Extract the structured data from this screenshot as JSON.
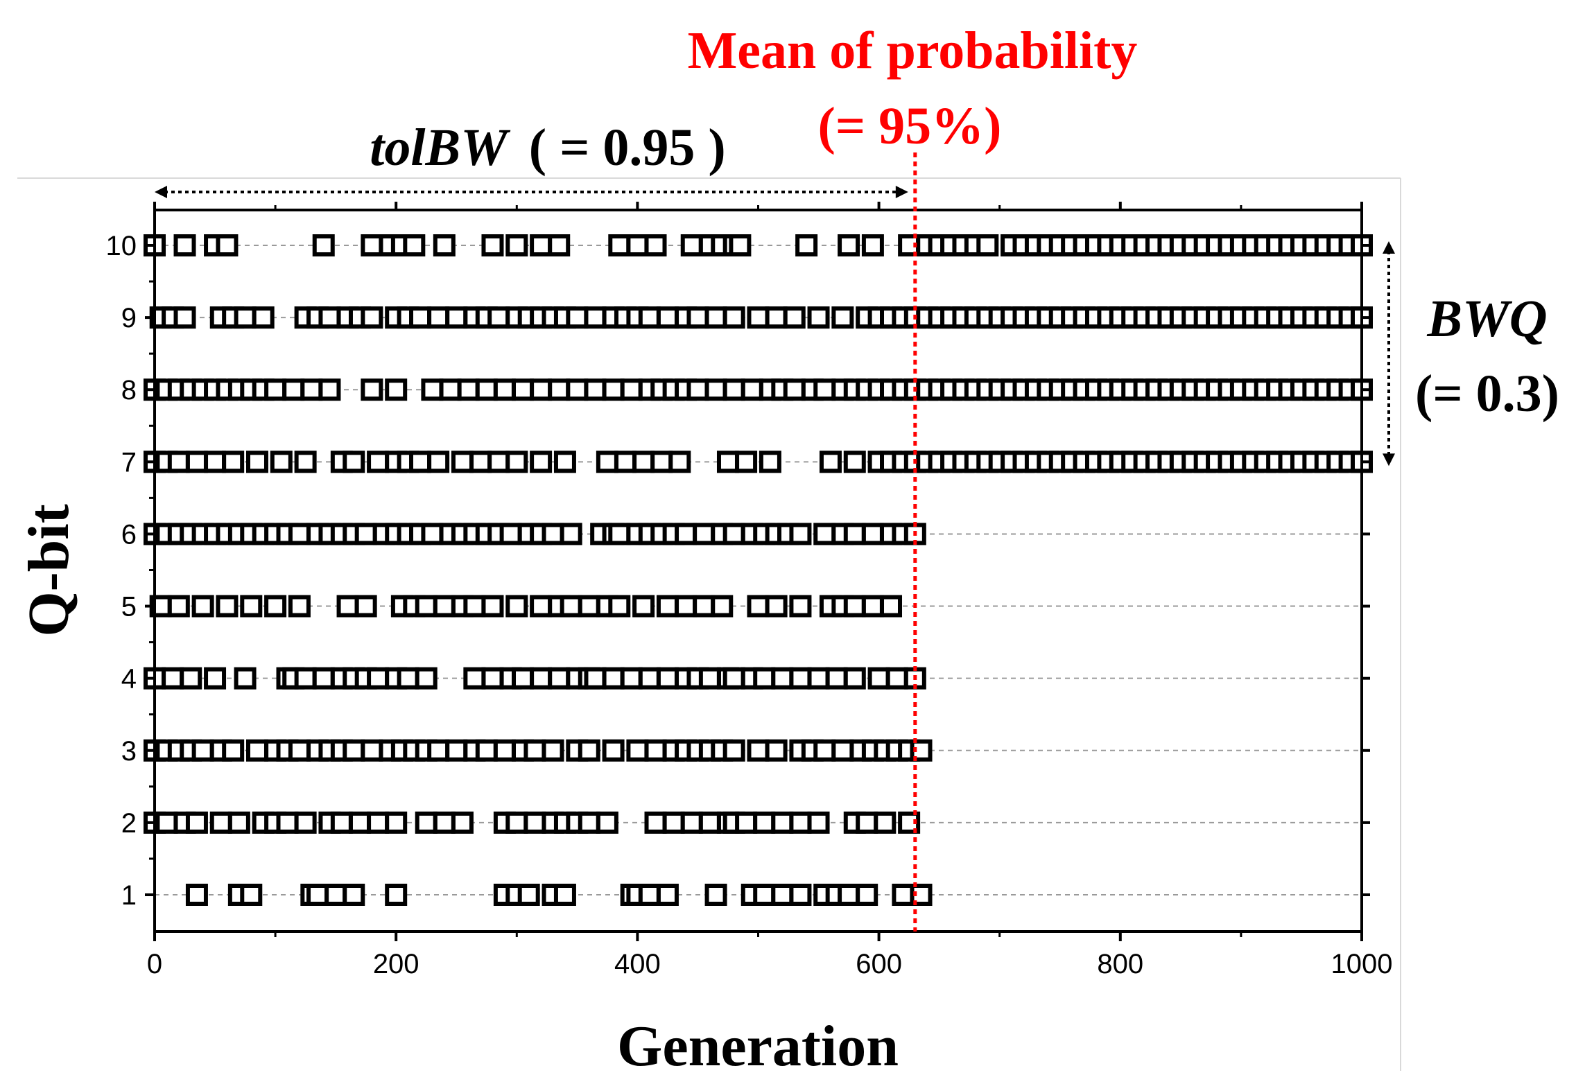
{
  "chart_data": {
    "type": "scatter",
    "xlabel": "Generation",
    "ylabel": "Q-bit",
    "xlim": [
      0,
      1000
    ],
    "ylim": [
      0.5,
      10.5
    ],
    "x_ticks": [
      0,
      200,
      400,
      600,
      800,
      1000
    ],
    "y_ticks": [
      1,
      2,
      3,
      4,
      5,
      6,
      7,
      8,
      9,
      10
    ],
    "grid": "horizontal dashed",
    "marker": "open-square",
    "annotations": {
      "mean_title": "Mean of probability",
      "mean_value": "(= 95%)",
      "mean_generation": 630,
      "tolbw_symbol": "tolBW",
      "tolbw_value": "( = 0.95 )",
      "tolbw_range": [
        0,
        630
      ],
      "bwq_symbol": "BWQ",
      "bwq_value": "(= 0.3)",
      "bwq_range": [
        7,
        10
      ]
    },
    "series": [
      {
        "name": "Q-bit 1",
        "y": 1,
        "x": [
          35,
          70,
          80,
          130,
          135,
          150,
          165,
          200,
          290,
          300,
          310,
          330,
          340,
          395,
          400,
          410,
          425,
          465,
          495,
          505,
          520,
          535,
          555,
          565,
          575,
          590,
          620,
          635
        ]
      },
      {
        "name": "Q-bit 2",
        "y": 2,
        "x": [
          0,
          10,
          25,
          35,
          55,
          70,
          90,
          100,
          110,
          125,
          145,
          155,
          170,
          185,
          200,
          225,
          240,
          255,
          290,
          300,
          315,
          330,
          340,
          350,
          360,
          375,
          415,
          430,
          445,
          460,
          475,
          480,
          490,
          505,
          520,
          535,
          550,
          580,
          590,
          605,
          625
        ]
      },
      {
        "name": "Q-bit 3",
        "y": 3,
        "x": [
          0,
          10,
          20,
          30,
          40,
          55,
          65,
          85,
          100,
          110,
          120,
          135,
          145,
          155,
          165,
          180,
          195,
          205,
          215,
          225,
          235,
          250,
          265,
          275,
          290,
          305,
          315,
          330,
          350,
          360,
          380,
          400,
          415,
          430,
          440,
          450,
          460,
          470,
          480,
          500,
          515,
          535,
          545,
          555,
          570,
          585,
          595,
          605,
          615,
          625,
          635
        ]
      },
      {
        "name": "Q-bit 4",
        "y": 4,
        "x": [
          0,
          15,
          30,
          50,
          75,
          110,
          115,
          125,
          140,
          155,
          165,
          175,
          185,
          200,
          210,
          225,
          265,
          280,
          295,
          305,
          320,
          335,
          350,
          360,
          365,
          380,
          395,
          410,
          425,
          440,
          450,
          460,
          475,
          480,
          495,
          505,
          520,
          535,
          550,
          565,
          580,
          600,
          615,
          630
        ]
      },
      {
        "name": "Q-bit 5",
        "y": 5,
        "x": [
          5,
          20,
          40,
          60,
          80,
          100,
          120,
          160,
          175,
          205,
          215,
          225,
          240,
          255,
          265,
          280,
          300,
          320,
          335,
          345,
          360,
          375,
          385,
          405,
          425,
          440,
          455,
          470,
          500,
          515,
          535,
          560,
          570,
          580,
          595,
          610
        ]
      },
      {
        "name": "Q-bit 6",
        "y": 6,
        "x": [
          0,
          10,
          20,
          30,
          40,
          50,
          60,
          70,
          80,
          90,
          100,
          110,
          120,
          135,
          145,
          155,
          165,
          175,
          190,
          200,
          210,
          220,
          230,
          245,
          255,
          265,
          275,
          285,
          295,
          310,
          320,
          330,
          345,
          370,
          380,
          385,
          400,
          410,
          420,
          430,
          440,
          455,
          470,
          480,
          495,
          505,
          515,
          525,
          535,
          555,
          570,
          580,
          595,
          610,
          620,
          630
        ]
      },
      {
        "name": "Q-bit 7",
        "y": 7,
        "x": [
          0,
          10,
          20,
          35,
          50,
          65,
          85,
          105,
          125,
          155,
          165,
          185,
          200,
          210,
          220,
          235,
          255,
          270,
          285,
          300,
          320,
          340,
          375,
          390,
          405,
          420,
          435,
          475,
          490,
          510,
          560,
          580,
          600,
          610,
          620,
          630,
          640,
          650,
          660,
          670,
          680,
          690,
          700,
          710,
          720,
          730,
          740,
          750,
          760,
          770,
          780,
          790,
          800,
          810,
          820,
          830,
          840,
          850,
          860,
          870,
          880,
          890,
          900,
          910,
          920,
          930,
          940,
          950,
          960,
          970,
          980,
          990,
          1000
        ]
      },
      {
        "name": "Q-bit 8",
        "y": 8,
        "x": [
          0,
          10,
          20,
          30,
          40,
          50,
          60,
          70,
          80,
          90,
          100,
          115,
          130,
          145,
          180,
          200,
          230,
          245,
          260,
          275,
          290,
          305,
          320,
          335,
          350,
          365,
          380,
          395,
          410,
          420,
          430,
          440,
          450,
          465,
          480,
          495,
          510,
          520,
          530,
          545,
          555,
          570,
          580,
          590,
          600,
          610,
          620,
          630,
          640,
          650,
          660,
          670,
          680,
          690,
          700,
          710,
          720,
          730,
          740,
          750,
          760,
          770,
          780,
          790,
          800,
          810,
          820,
          830,
          840,
          850,
          860,
          870,
          880,
          890,
          900,
          910,
          920,
          930,
          940,
          950,
          960,
          970,
          980,
          990,
          1000
        ]
      },
      {
        "name": "Q-bit 9",
        "y": 9,
        "x": [
          5,
          15,
          25,
          55,
          65,
          75,
          90,
          125,
          135,
          145,
          160,
          170,
          180,
          200,
          210,
          220,
          235,
          250,
          265,
          275,
          285,
          300,
          310,
          320,
          330,
          340,
          350,
          365,
          380,
          390,
          400,
          410,
          425,
          440,
          450,
          465,
          480,
          500,
          515,
          530,
          550,
          570,
          590,
          600,
          610,
          620,
          630,
          640,
          650,
          660,
          670,
          680,
          690,
          700,
          710,
          720,
          730,
          740,
          750,
          760,
          770,
          780,
          790,
          800,
          810,
          820,
          830,
          840,
          850,
          860,
          870,
          880,
          890,
          900,
          910,
          920,
          930,
          940,
          950,
          960,
          970,
          980,
          990,
          1000
        ]
      },
      {
        "name": "Q-bit 10",
        "y": 10,
        "x": [
          0,
          25,
          50,
          60,
          140,
          180,
          195,
          205,
          215,
          240,
          280,
          300,
          320,
          335,
          385,
          400,
          415,
          445,
          460,
          470,
          480,
          485,
          540,
          575,
          595,
          625,
          640,
          650,
          660,
          670,
          680,
          690,
          710,
          720,
          730,
          740,
          750,
          760,
          770,
          780,
          790,
          800,
          810,
          820,
          830,
          840,
          850,
          860,
          870,
          880,
          890,
          900,
          910,
          920,
          930,
          940,
          950,
          960,
          970,
          980,
          990,
          1000
        ]
      }
    ]
  }
}
